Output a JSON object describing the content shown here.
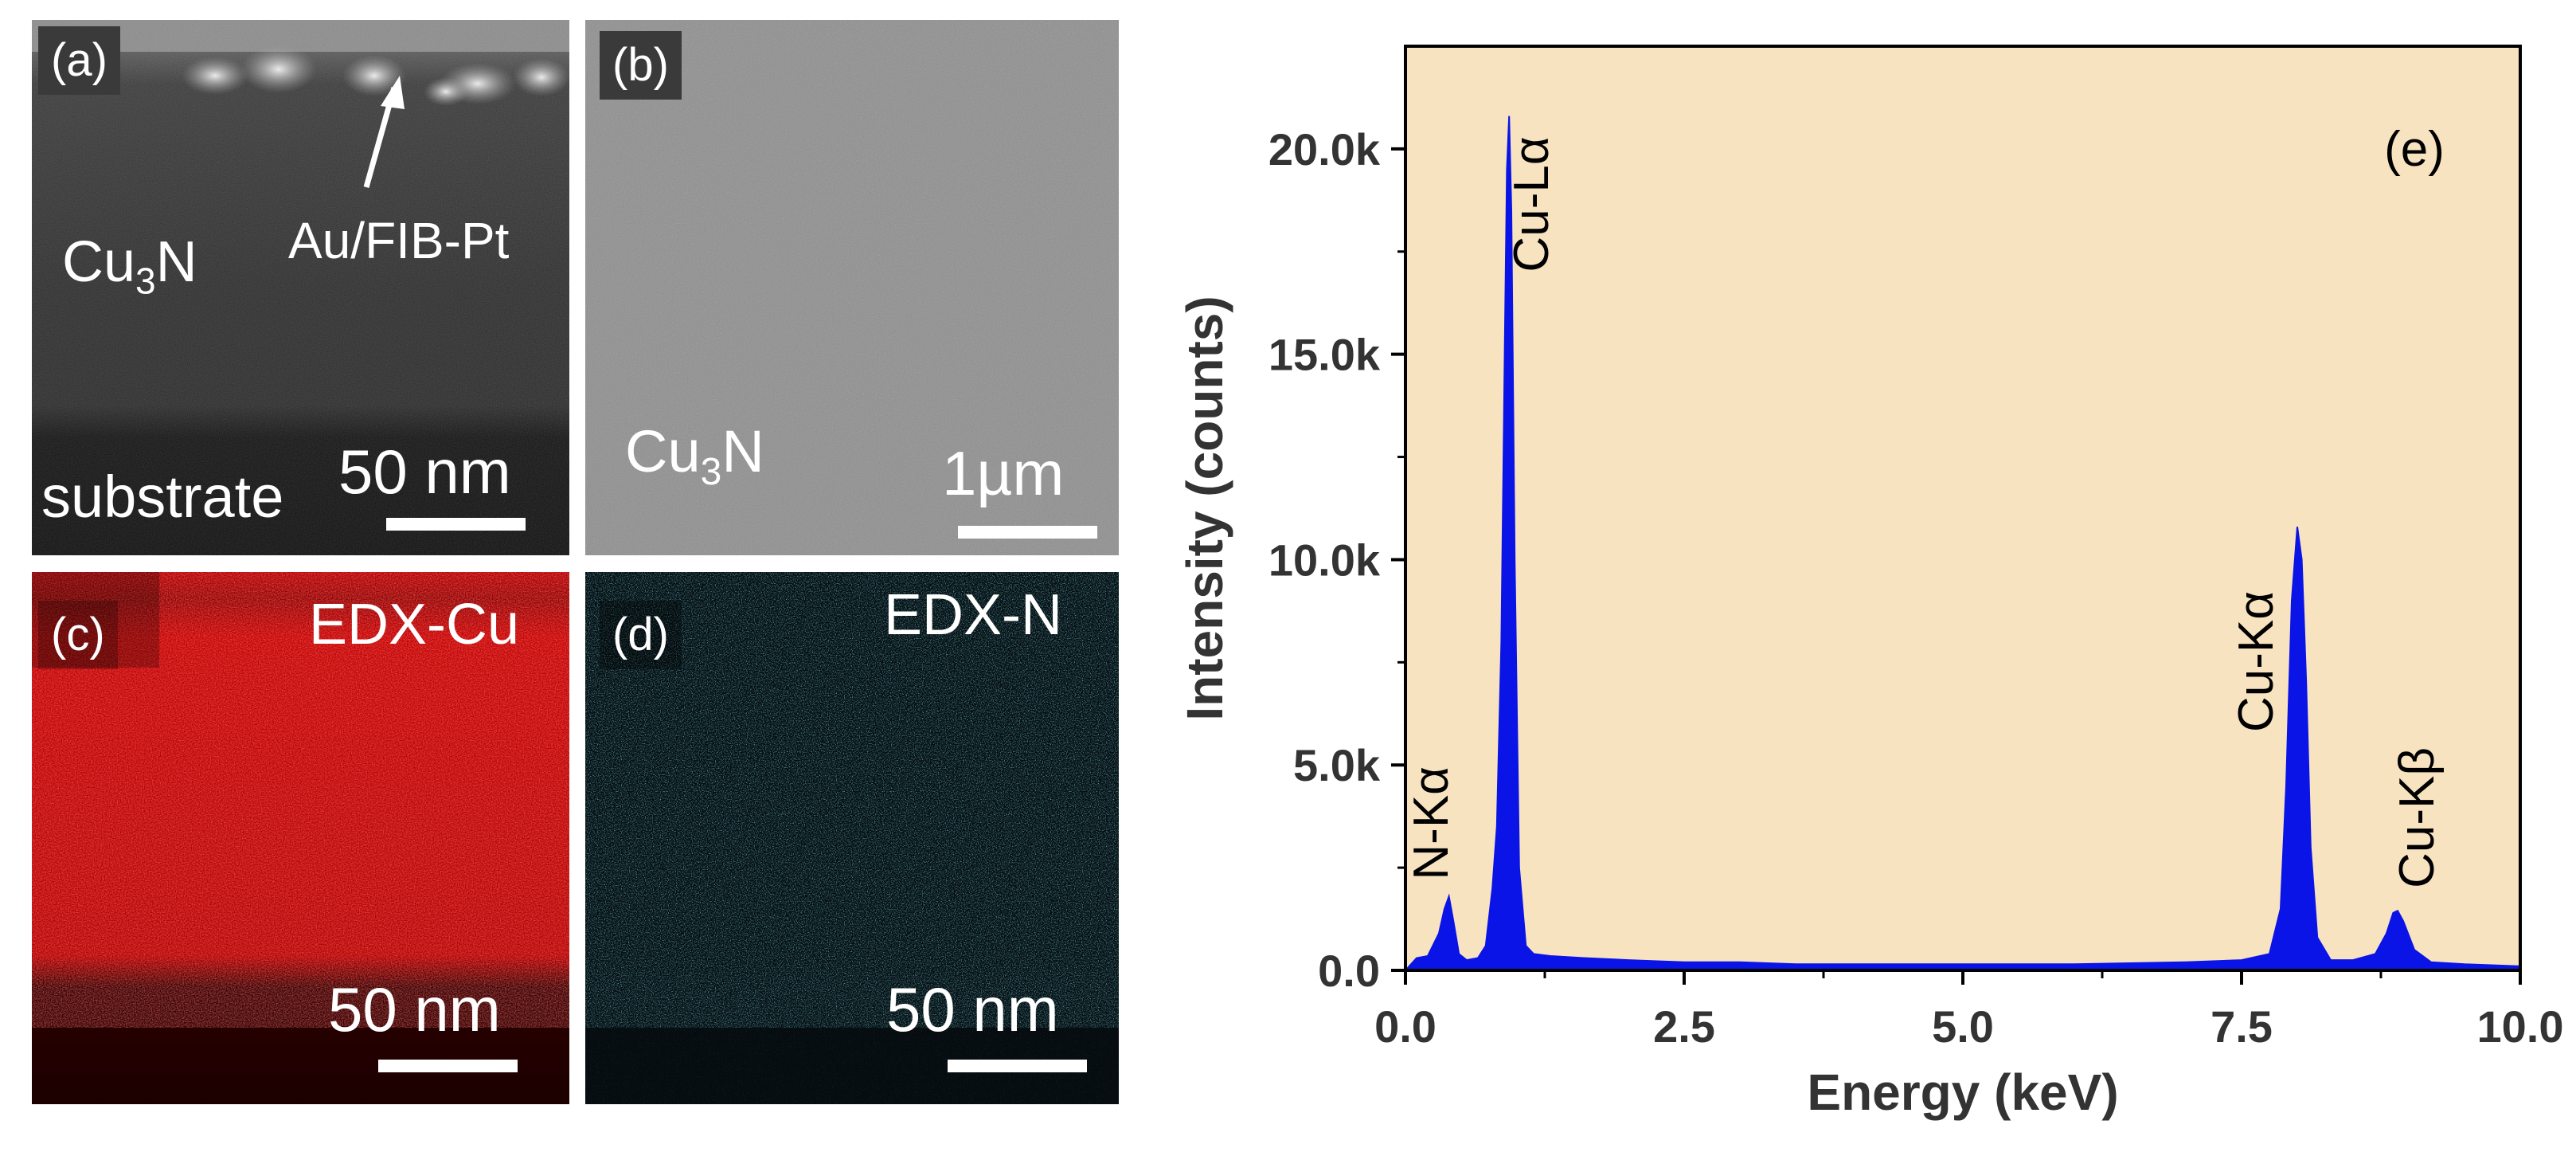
{
  "micrographs": {
    "a": {
      "tag": "(a)",
      "material": "Cu",
      "material_sub": "3",
      "material_rest": "N",
      "region": "substrate",
      "annotation": "Au/FIB-Pt",
      "scale": "50 nm"
    },
    "b": {
      "tag": "(b)",
      "material": "Cu",
      "material_sub": "3",
      "material_rest": "N",
      "scale": "1µm"
    },
    "c": {
      "tag": "(c)",
      "map": "EDX-Cu",
      "scale": "50 nm",
      "color": "#e01010"
    },
    "d": {
      "tag": "(d)",
      "map": "EDX-N",
      "scale": "50 nm",
      "color": "#30d8e8"
    }
  },
  "chart_data": {
    "type": "area",
    "panel_label": "(e)",
    "xlabel": "Energy (keV)",
    "ylabel": "Intensity (counts)",
    "xlim": [
      0,
      10
    ],
    "ylim": [
      0,
      22500
    ],
    "xticks": [
      0.0,
      2.5,
      5.0,
      7.5,
      10.0
    ],
    "xtick_labels": [
      "0.0",
      "2.5",
      "5.0",
      "7.5",
      "10.0"
    ],
    "yticks": [
      0,
      5000,
      10000,
      15000,
      20000
    ],
    "ytick_labels": [
      "0.0",
      "5.0k",
      "10.0k",
      "15.0k",
      "20.0k"
    ],
    "background_color": "#f8e3c0",
    "fill_color": "#0a14e6",
    "series": [
      {
        "x": [
          0.0,
          0.1,
          0.2,
          0.3,
          0.35,
          0.39,
          0.43,
          0.48,
          0.55,
          0.65,
          0.72,
          0.78,
          0.82,
          0.86,
          0.89,
          0.91,
          0.93,
          0.95,
          0.98,
          1.02,
          1.08,
          1.15,
          1.3,
          1.6,
          2.0,
          2.5,
          3.0,
          3.5,
          4.0,
          5.0,
          6.0,
          7.0,
          7.5,
          7.75,
          7.85,
          7.9,
          7.95,
          8.0,
          8.04,
          8.08,
          8.12,
          8.18,
          8.3,
          8.5,
          8.7,
          8.8,
          8.86,
          8.9,
          8.95,
          9.05,
          9.2,
          9.5,
          10.0
        ],
        "y": [
          0,
          300,
          350,
          900,
          1500,
          1800,
          1200,
          400,
          250,
          300,
          600,
          2000,
          3500,
          8000,
          15000,
          19500,
          20800,
          18500,
          10000,
          2500,
          600,
          400,
          350,
          300,
          250,
          200,
          200,
          150,
          150,
          150,
          150,
          200,
          250,
          400,
          1500,
          4500,
          9000,
          10800,
          10000,
          7000,
          3000,
          800,
          250,
          250,
          400,
          900,
          1400,
          1450,
          1200,
          500,
          200,
          150,
          100
        ]
      }
    ],
    "annotations": [
      {
        "text": "N-Kα",
        "x": 0.38,
        "y": 2200
      },
      {
        "text": "Cu-Lα",
        "x": 1.28,
        "y": 17000
      },
      {
        "text": "Cu-Kα",
        "x": 7.78,
        "y": 5800
      },
      {
        "text": "Cu-Kβ",
        "x": 9.22,
        "y": 2000
      }
    ]
  }
}
